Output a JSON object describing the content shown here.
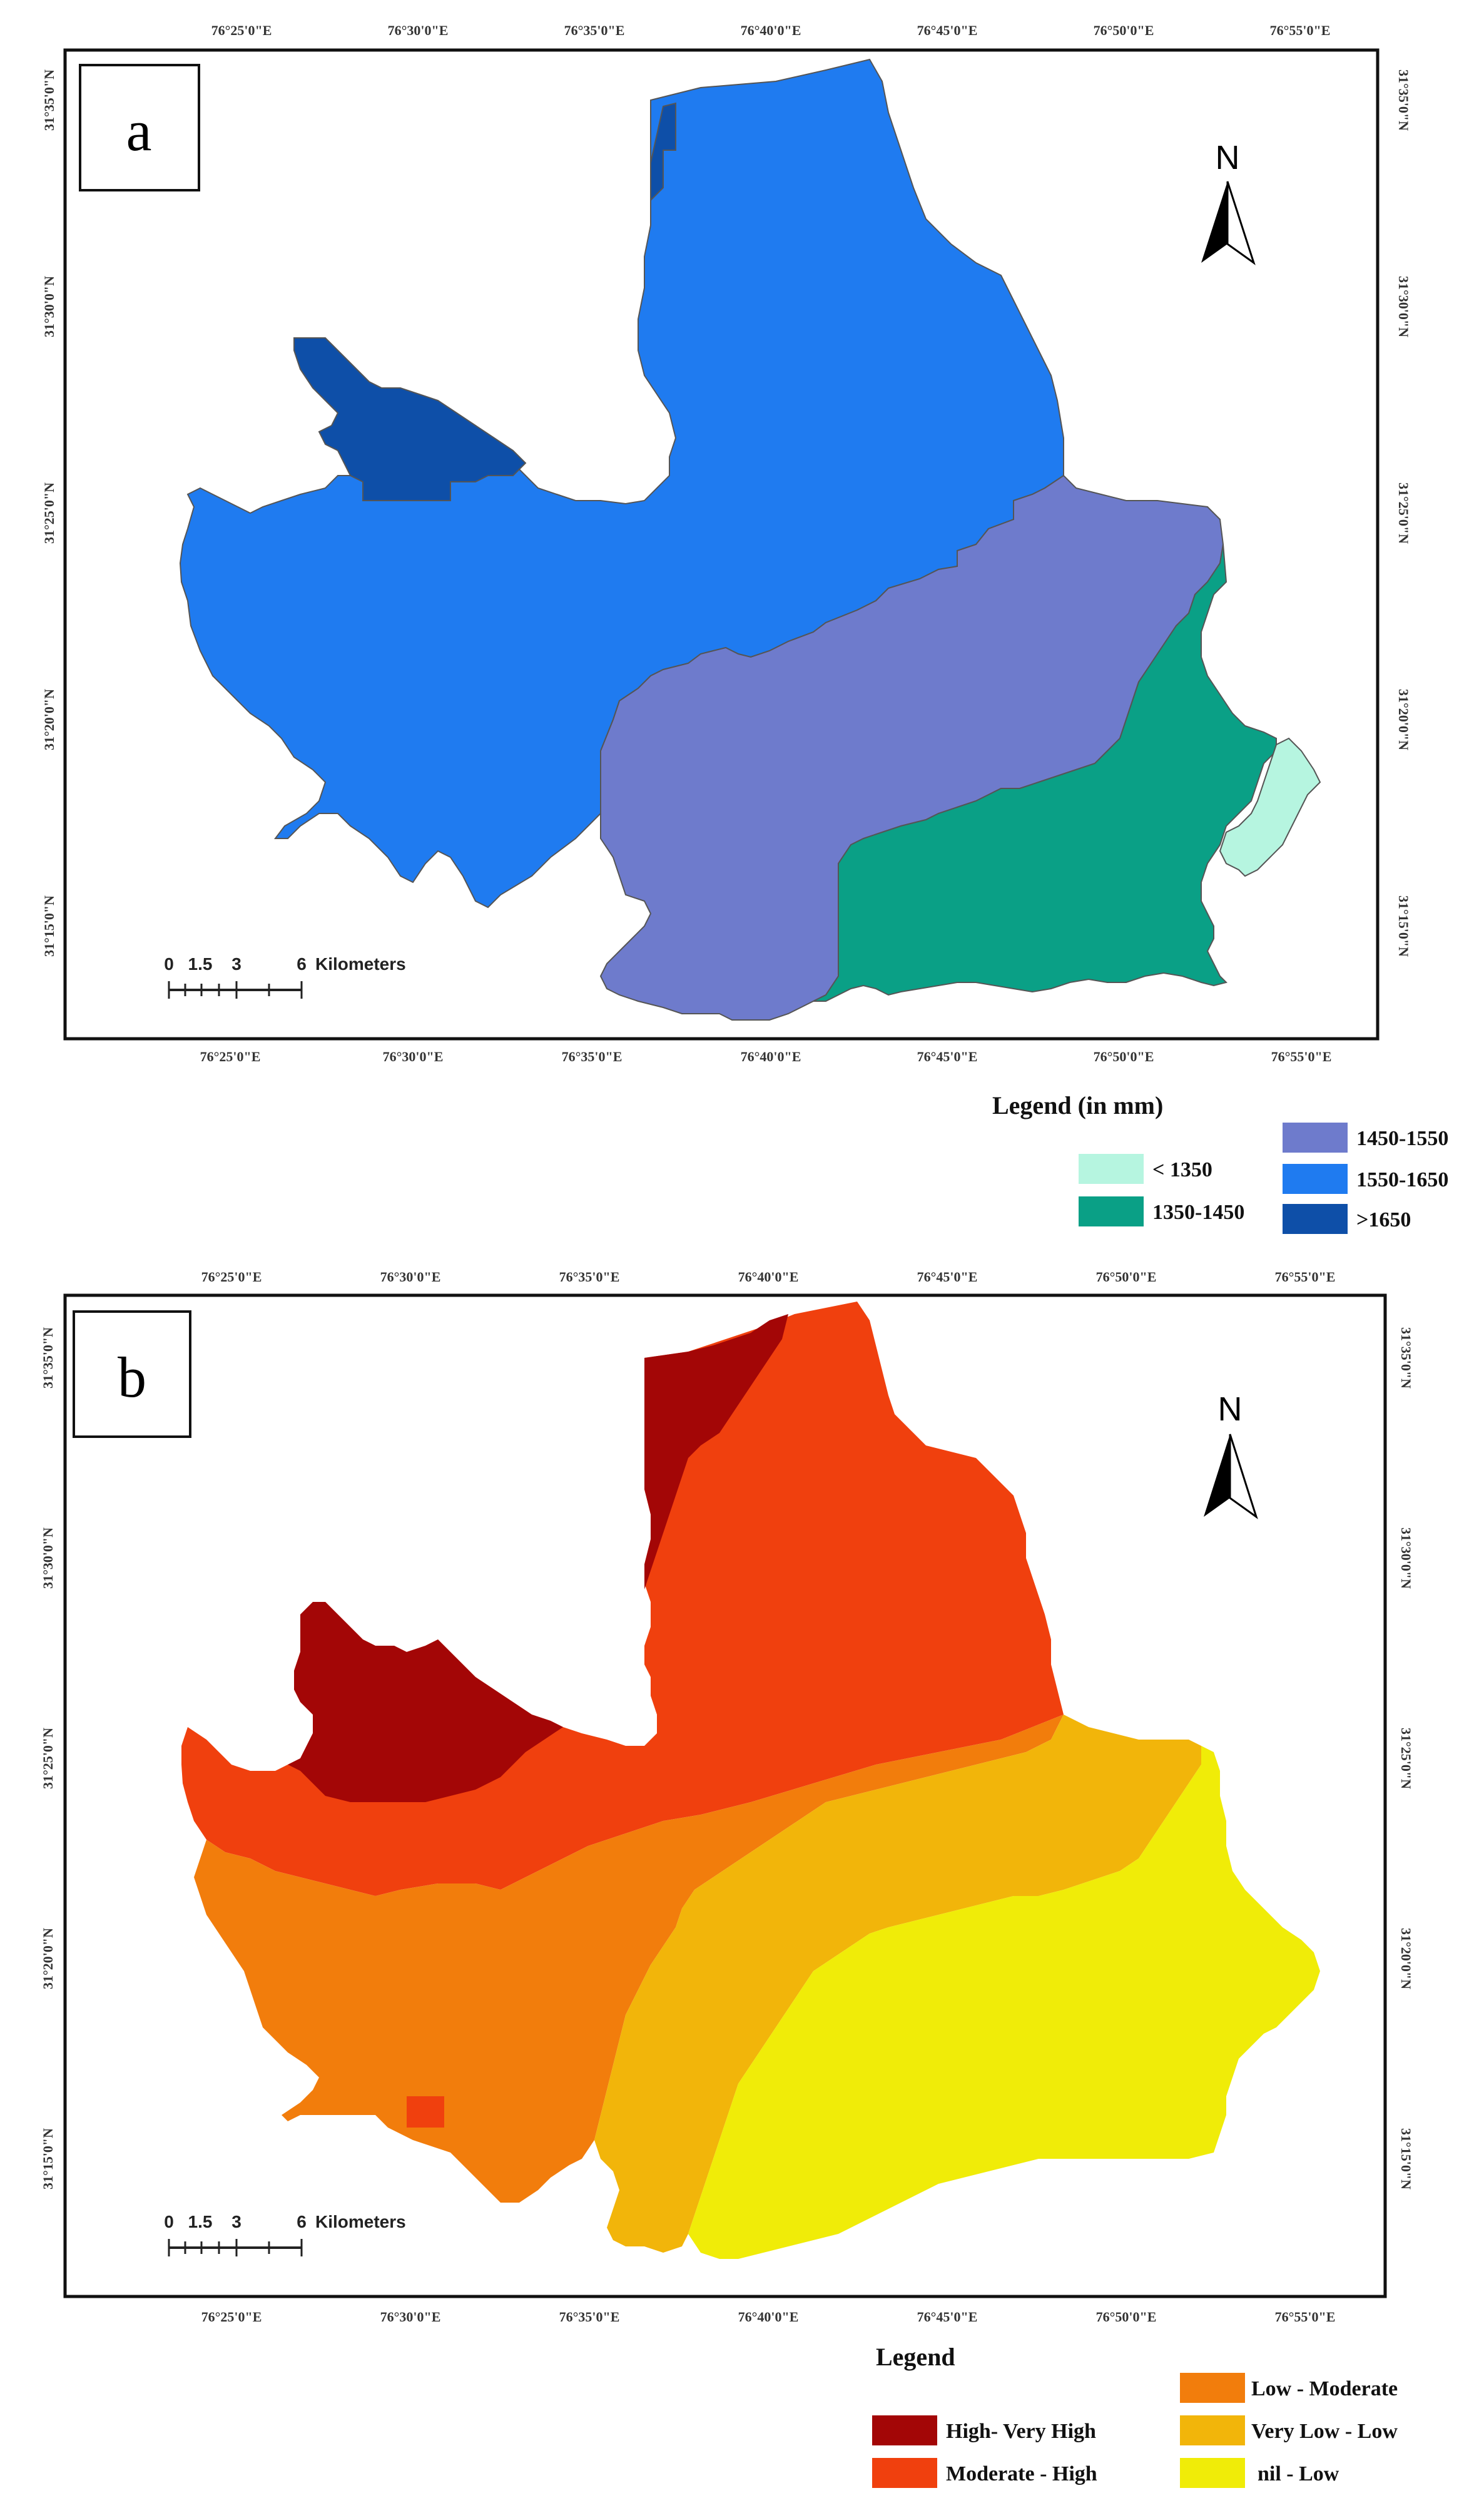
{
  "panel_a": {
    "label": "a",
    "north": "N",
    "lon_ticks": [
      "76°25'0\"E",
      "76°30'0\"E",
      "76°35'0\"E",
      "76°40'0\"E",
      "76°45'0\"E",
      "76°50'0\"E",
      "76°55'0\"E"
    ],
    "lat_ticks": [
      "31°35'0\"N",
      "31°30'0\"N",
      "31°25'0\"N",
      "31°20'0\"N",
      "31°15'0\"N"
    ],
    "scale": {
      "labels": [
        "0",
        "1.5",
        "3",
        "6"
      ],
      "unit": "Kilometers"
    },
    "legend": {
      "title": "Legend (in mm)",
      "items": [
        {
          "label": "< 1350",
          "color": "#b6f5e0"
        },
        {
          "label": "1350-1450",
          "color": "#0aa086"
        },
        {
          "label": "1450-1550",
          "color": "#6e7bcc"
        },
        {
          "label": "1550-1650",
          "color": "#1f7bf0"
        },
        {
          "label": ">1650",
          "color": "#0e4fa8"
        }
      ]
    }
  },
  "panel_b": {
    "label": "b",
    "north": "N",
    "lon_ticks": [
      "76°25'0\"E",
      "76°30'0\"E",
      "76°35'0\"E",
      "76°40'0\"E",
      "76°45'0\"E",
      "76°50'0\"E",
      "76°55'0\"E"
    ],
    "lat_ticks": [
      "31°35'0\"N",
      "31°30'0\"N",
      "31°25'0\"N",
      "31°20'0\"N",
      "31°15'0\"N"
    ],
    "scale": {
      "labels": [
        "0",
        "1.5",
        "3",
        "6"
      ],
      "unit": "Kilometers"
    },
    "legend": {
      "title": "Legend",
      "items": [
        {
          "label": "High- Very High",
          "color": "#a30606"
        },
        {
          "label": "Moderate - High",
          "color": "#f0400e"
        },
        {
          "label": "Low - Moderate",
          "color": "#f27d0c"
        },
        {
          "label": "Very Low - Low",
          "color": "#f2b50a"
        },
        {
          "label": "nil - Low",
          "color": "#f0ec08"
        }
      ]
    }
  }
}
